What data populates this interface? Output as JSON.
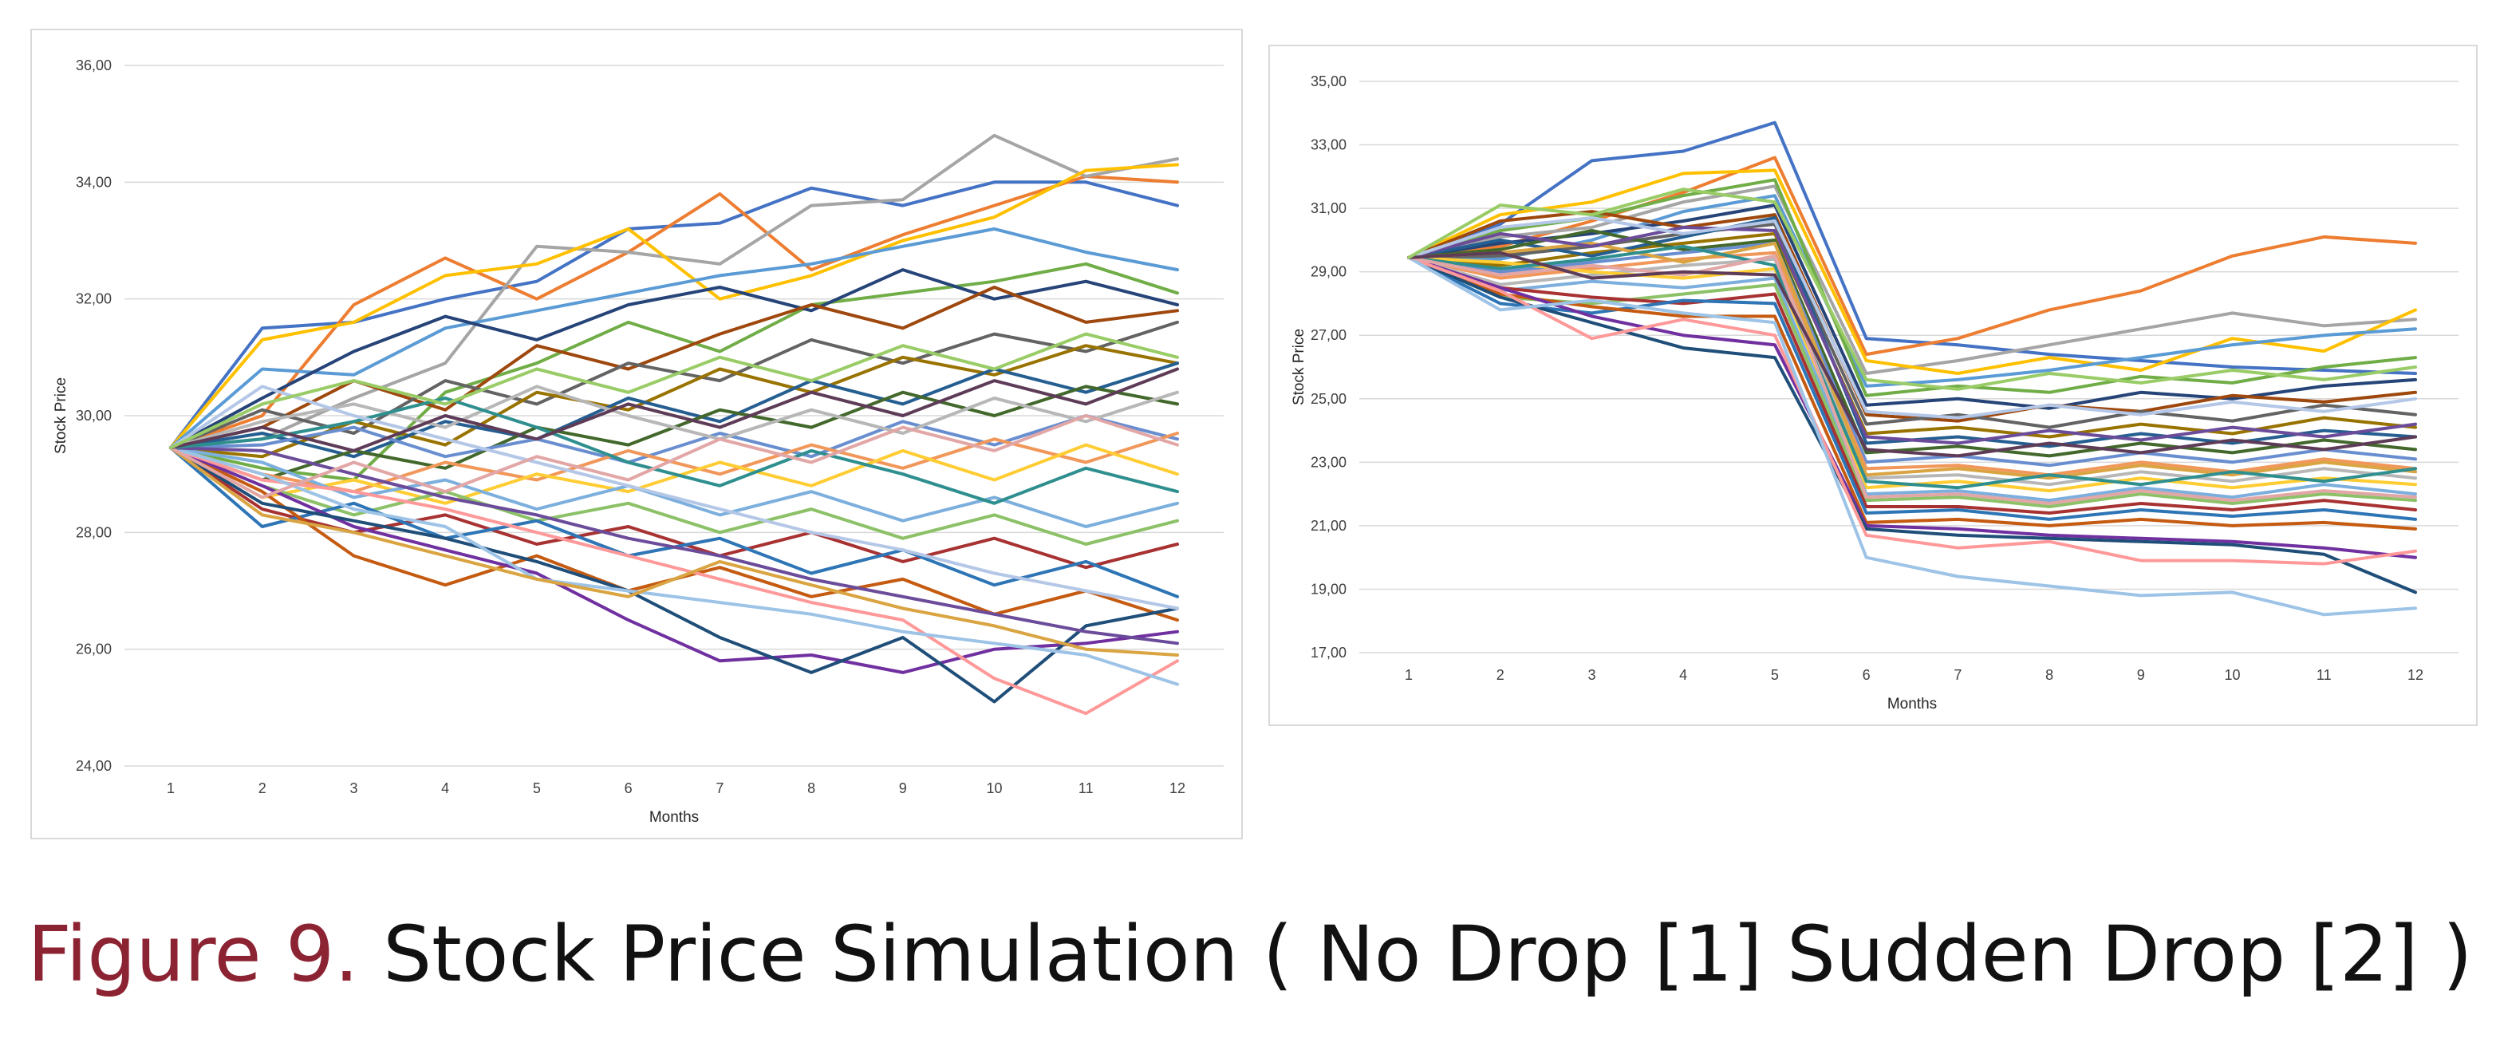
{
  "caption": {
    "prefix": "Figure 9.",
    "text": "Stock Price Simulation ( No Drop [1]  Sudden Drop [2] )",
    "prefix_color": "#8c2332"
  },
  "palette": [
    "#4472c4",
    "#ed7d31",
    "#a5a5a5",
    "#ffc000",
    "#5b9bd5",
    "#70ad47",
    "#264478",
    "#9e480e",
    "#636363",
    "#997300",
    "#255e91",
    "#43682b",
    "#698ed0",
    "#f1975a",
    "#b7b7b7",
    "#ffcd33",
    "#7cafdd",
    "#8cc168",
    "#a83232",
    "#2e75b6",
    "#c55a11",
    "#7030a0",
    "#1f4e79",
    "#ff9999",
    "#9dc3e6",
    "#d9a441",
    "#6b4c9a",
    "#2f8f8f",
    "#b4c7e7",
    "#e2a6a6",
    "#5e3c58",
    "#99cc66"
  ],
  "chart_data": [
    {
      "type": "line",
      "title": "",
      "xlabel": "Months",
      "ylabel": "Stock Price",
      "x": [
        1,
        2,
        3,
        4,
        5,
        6,
        7,
        8,
        9,
        10,
        11,
        12
      ],
      "ylim": [
        24,
        36
      ],
      "yticks": [
        "24,00",
        "26,00",
        "28,00",
        "30,00",
        "32,00",
        "34,00",
        "36,00"
      ],
      "grid": true,
      "legend": "none",
      "series": [
        {
          "values": [
            29.45,
            31.5,
            31.6,
            32.0,
            32.3,
            33.2,
            33.3,
            33.9,
            33.6,
            34.0,
            34.0,
            33.6
          ]
        },
        {
          "values": [
            29.45,
            30.0,
            31.9,
            32.7,
            32.0,
            32.8,
            33.8,
            32.5,
            33.1,
            33.6,
            34.1,
            34.0
          ]
        },
        {
          "values": [
            29.45,
            29.6,
            30.3,
            30.9,
            32.9,
            32.8,
            32.6,
            33.6,
            33.7,
            34.8,
            34.1,
            34.4
          ]
        },
        {
          "values": [
            29.45,
            31.3,
            31.6,
            32.4,
            32.6,
            33.2,
            32.0,
            32.4,
            33.0,
            33.4,
            34.2,
            34.3
          ]
        },
        {
          "values": [
            29.45,
            30.8,
            30.7,
            31.5,
            31.8,
            32.1,
            32.4,
            32.6,
            32.9,
            33.2,
            32.8,
            32.5
          ]
        },
        {
          "values": [
            29.45,
            29.1,
            28.9,
            30.4,
            30.9,
            31.6,
            31.1,
            31.9,
            32.1,
            32.3,
            32.6,
            32.1
          ]
        },
        {
          "values": [
            29.45,
            30.3,
            31.1,
            31.7,
            31.3,
            31.9,
            32.2,
            31.8,
            32.5,
            32.0,
            32.3,
            31.9
          ]
        },
        {
          "values": [
            29.45,
            29.8,
            30.6,
            30.1,
            31.2,
            30.8,
            31.4,
            31.9,
            31.5,
            32.2,
            31.6,
            31.8
          ]
        },
        {
          "values": [
            29.45,
            30.1,
            29.7,
            30.6,
            30.2,
            30.9,
            30.6,
            31.3,
            30.9,
            31.4,
            31.1,
            31.6
          ]
        },
        {
          "values": [
            29.45,
            29.3,
            29.9,
            29.5,
            30.4,
            30.1,
            30.8,
            30.4,
            31.0,
            30.7,
            31.2,
            30.9
          ]
        },
        {
          "values": [
            29.45,
            29.7,
            29.3,
            29.9,
            29.6,
            30.3,
            29.9,
            30.6,
            30.2,
            30.8,
            30.4,
            30.9
          ]
        },
        {
          "values": [
            29.45,
            28.9,
            29.4,
            29.1,
            29.8,
            29.5,
            30.1,
            29.8,
            30.4,
            30.0,
            30.5,
            30.2
          ]
        },
        {
          "values": [
            29.45,
            29.5,
            29.8,
            29.3,
            29.6,
            29.2,
            29.7,
            29.3,
            29.9,
            29.5,
            30.0,
            29.6
          ]
        },
        {
          "values": [
            29.45,
            29.0,
            28.7,
            29.2,
            28.9,
            29.4,
            29.0,
            29.5,
            29.1,
            29.6,
            29.2,
            29.7
          ]
        },
        {
          "values": [
            29.45,
            29.9,
            30.2,
            29.8,
            30.5,
            30.0,
            29.6,
            30.1,
            29.7,
            30.3,
            29.9,
            30.4
          ]
        },
        {
          "values": [
            29.45,
            28.6,
            28.9,
            28.5,
            29.0,
            28.7,
            29.2,
            28.8,
            29.4,
            28.9,
            29.5,
            29.0
          ]
        },
        {
          "values": [
            29.45,
            29.2,
            28.6,
            28.9,
            28.4,
            28.8,
            28.3,
            28.7,
            28.2,
            28.6,
            28.1,
            28.5
          ]
        },
        {
          "values": [
            29.45,
            28.8,
            28.3,
            28.7,
            28.2,
            28.5,
            28.0,
            28.4,
            27.9,
            28.3,
            27.8,
            28.2
          ]
        },
        {
          "values": [
            29.45,
            28.4,
            28.0,
            28.3,
            27.8,
            28.1,
            27.6,
            28.0,
            27.5,
            27.9,
            27.4,
            27.8
          ]
        },
        {
          "values": [
            29.45,
            28.1,
            28.5,
            27.9,
            28.2,
            27.6,
            27.9,
            27.3,
            27.7,
            27.1,
            27.5,
            26.9
          ]
        },
        {
          "values": [
            29.45,
            28.7,
            27.6,
            27.1,
            27.6,
            27.0,
            27.4,
            26.9,
            27.2,
            26.6,
            27.0,
            26.5
          ]
        },
        {
          "values": [
            29.45,
            28.8,
            28.1,
            27.7,
            27.3,
            26.5,
            25.8,
            25.9,
            25.6,
            26.0,
            26.1,
            26.3
          ]
        },
        {
          "values": [
            29.45,
            28.5,
            28.2,
            27.9,
            27.5,
            27.0,
            26.2,
            25.6,
            26.2,
            25.1,
            26.4,
            26.7
          ]
        },
        {
          "values": [
            29.45,
            28.9,
            28.7,
            28.4,
            28.0,
            27.6,
            27.2,
            26.8,
            26.5,
            25.5,
            24.9,
            25.8
          ]
        },
        {
          "values": [
            29.45,
            29.0,
            28.4,
            28.1,
            27.2,
            27.0,
            26.8,
            26.6,
            26.3,
            26.1,
            25.9,
            25.4
          ]
        },
        {
          "values": [
            29.45,
            28.3,
            28.0,
            27.6,
            27.2,
            26.9,
            27.5,
            27.1,
            26.7,
            26.4,
            26.0,
            25.9
          ]
        },
        {
          "values": [
            29.45,
            29.4,
            29.0,
            28.6,
            28.3,
            27.9,
            27.6,
            27.2,
            26.9,
            26.6,
            26.3,
            26.1
          ]
        },
        {
          "values": [
            29.45,
            29.6,
            29.9,
            30.3,
            29.8,
            29.2,
            28.8,
            29.4,
            29.0,
            28.5,
            29.1,
            28.7
          ]
        },
        {
          "values": [
            29.45,
            30.5,
            30.0,
            29.6,
            29.2,
            28.8,
            28.4,
            28.0,
            27.7,
            27.3,
            27.0,
            26.7
          ]
        },
        {
          "values": [
            29.45,
            28.6,
            29.2,
            28.7,
            29.3,
            28.9,
            29.6,
            29.2,
            29.8,
            29.4,
            30.0,
            29.5
          ]
        },
        {
          "values": [
            29.45,
            29.8,
            29.4,
            30.0,
            29.6,
            30.2,
            29.8,
            30.4,
            30.0,
            30.6,
            30.2,
            30.8
          ]
        },
        {
          "values": [
            29.45,
            30.2,
            30.6,
            30.2,
            30.8,
            30.4,
            31.0,
            30.6,
            31.2,
            30.8,
            31.4,
            31.0
          ]
        }
      ]
    },
    {
      "type": "line",
      "title": "",
      "xlabel": "Months",
      "ylabel": "Stock Price",
      "x": [
        1,
        2,
        3,
        4,
        5,
        6,
        7,
        8,
        9,
        10,
        11,
        12
      ],
      "ylim": [
        17,
        35
      ],
      "yticks": [
        "17,00",
        "19,00",
        "21,00",
        "23,00",
        "25,00",
        "27,00",
        "29,00",
        "31,00",
        "33,00",
        "35,00"
      ],
      "grid": true,
      "legend": "none",
      "series": [
        {
          "values": [
            29.45,
            30.5,
            32.5,
            32.8,
            33.7,
            26.9,
            26.7,
            26.4,
            26.2,
            26.0,
            25.9,
            25.8
          ]
        },
        {
          "values": [
            29.45,
            29.8,
            30.6,
            31.5,
            32.6,
            26.4,
            26.9,
            27.8,
            28.4,
            29.5,
            30.1,
            29.9
          ]
        },
        {
          "values": [
            29.45,
            30.1,
            30.4,
            31.2,
            31.7,
            25.8,
            26.2,
            26.7,
            27.2,
            27.7,
            27.3,
            27.5
          ]
        },
        {
          "values": [
            29.45,
            30.8,
            31.2,
            32.1,
            32.2,
            26.2,
            25.8,
            26.3,
            25.9,
            26.9,
            26.5,
            27.8
          ]
        },
        {
          "values": [
            29.45,
            29.4,
            30.0,
            30.9,
            31.4,
            25.4,
            25.6,
            25.9,
            26.3,
            26.7,
            27.0,
            27.2
          ]
        },
        {
          "values": [
            29.45,
            30.3,
            30.7,
            31.4,
            31.9,
            25.1,
            25.4,
            25.2,
            25.7,
            25.5,
            26.0,
            26.3
          ]
        },
        {
          "values": [
            29.45,
            29.9,
            30.2,
            30.6,
            31.1,
            24.8,
            25.0,
            24.7,
            25.2,
            25.0,
            25.4,
            25.6
          ]
        },
        {
          "values": [
            29.45,
            30.6,
            30.9,
            30.4,
            30.8,
            24.5,
            24.3,
            24.8,
            24.6,
            25.1,
            24.9,
            25.2
          ]
        },
        {
          "values": [
            29.45,
            29.5,
            29.8,
            30.2,
            30.5,
            24.2,
            24.5,
            24.1,
            24.6,
            24.3,
            24.8,
            24.5
          ]
        },
        {
          "values": [
            29.45,
            29.2,
            29.6,
            29.9,
            30.2,
            23.9,
            24.1,
            23.8,
            24.2,
            23.9,
            24.4,
            24.1
          ]
        },
        {
          "values": [
            29.45,
            30.0,
            29.5,
            30.1,
            30.7,
            23.6,
            23.8,
            23.5,
            23.9,
            23.6,
            24.0,
            23.8
          ]
        },
        {
          "values": [
            29.45,
            29.7,
            30.3,
            29.7,
            30.0,
            23.3,
            23.5,
            23.2,
            23.6,
            23.3,
            23.7,
            23.4
          ]
        },
        {
          "values": [
            29.45,
            29.0,
            29.3,
            29.6,
            29.9,
            23.0,
            23.2,
            22.9,
            23.3,
            23.0,
            23.4,
            23.1
          ]
        },
        {
          "values": [
            29.45,
            28.8,
            29.1,
            29.4,
            29.6,
            22.8,
            22.9,
            22.6,
            23.0,
            22.7,
            23.1,
            22.8
          ]
        },
        {
          "values": [
            29.45,
            28.6,
            28.9,
            29.2,
            29.4,
            22.5,
            22.6,
            22.3,
            22.7,
            22.4,
            22.8,
            22.5
          ]
        },
        {
          "values": [
            29.45,
            29.3,
            29.0,
            28.8,
            29.1,
            22.2,
            22.4,
            22.1,
            22.5,
            22.2,
            22.5,
            22.3
          ]
        },
        {
          "values": [
            29.45,
            28.4,
            28.7,
            28.5,
            28.8,
            22.0,
            22.1,
            21.8,
            22.2,
            21.9,
            22.3,
            22.0
          ]
        },
        {
          "values": [
            29.45,
            28.2,
            28.0,
            28.3,
            28.6,
            21.8,
            21.9,
            21.6,
            22.0,
            21.7,
            22.0,
            21.8
          ]
        },
        {
          "values": [
            29.45,
            28.5,
            28.2,
            28.0,
            28.3,
            21.6,
            21.6,
            21.4,
            21.7,
            21.5,
            21.8,
            21.5
          ]
        },
        {
          "values": [
            29.45,
            28.0,
            27.7,
            28.1,
            28.0,
            21.4,
            21.5,
            21.2,
            21.5,
            21.3,
            21.5,
            21.2
          ]
        },
        {
          "values": [
            29.45,
            28.3,
            27.9,
            27.6,
            27.6,
            21.1,
            21.2,
            21.0,
            21.2,
            21.0,
            21.1,
            20.9
          ]
        },
        {
          "values": [
            29.45,
            28.5,
            27.6,
            27.0,
            26.7,
            21.0,
            20.9,
            20.7,
            20.6,
            20.5,
            20.3,
            20.0
          ]
        },
        {
          "values": [
            29.45,
            28.2,
            27.4,
            26.6,
            26.3,
            20.9,
            20.7,
            20.6,
            20.5,
            20.4,
            20.1,
            18.9
          ]
        },
        {
          "values": [
            29.45,
            28.4,
            26.9,
            27.5,
            27.0,
            20.7,
            20.3,
            20.5,
            19.9,
            19.9,
            19.8,
            20.2
          ]
        },
        {
          "values": [
            29.45,
            27.8,
            28.1,
            27.7,
            27.4,
            20.0,
            19.4,
            19.1,
            18.8,
            18.9,
            18.2,
            18.4
          ]
        },
        {
          "values": [
            29.45,
            29.6,
            29.9,
            29.3,
            29.9,
            22.6,
            22.8,
            22.5,
            22.9,
            22.6,
            23.0,
            22.7
          ]
        },
        {
          "values": [
            29.45,
            30.2,
            29.8,
            30.4,
            30.3,
            23.8,
            23.6,
            24.0,
            23.7,
            24.1,
            23.8,
            24.2
          ]
        },
        {
          "values": [
            29.45,
            29.1,
            29.4,
            29.8,
            29.2,
            22.4,
            22.2,
            22.6,
            22.3,
            22.7,
            22.4,
            22.8
          ]
        },
        {
          "values": [
            29.45,
            30.4,
            30.7,
            30.2,
            30.6,
            24.6,
            24.4,
            24.8,
            24.5,
            24.9,
            24.6,
            25.0
          ]
        },
        {
          "values": [
            29.45,
            28.9,
            29.2,
            28.9,
            29.5,
            21.9,
            22.0,
            21.7,
            22.1,
            21.8,
            22.1,
            21.9
          ]
        },
        {
          "values": [
            29.45,
            29.6,
            28.8,
            29.0,
            28.9,
            23.4,
            23.2,
            23.6,
            23.3,
            23.7,
            23.4,
            23.8
          ]
        },
        {
          "values": [
            29.45,
            31.1,
            30.8,
            31.6,
            31.2,
            25.6,
            25.3,
            25.8,
            25.5,
            25.9,
            25.6,
            26.0
          ]
        }
      ]
    }
  ]
}
